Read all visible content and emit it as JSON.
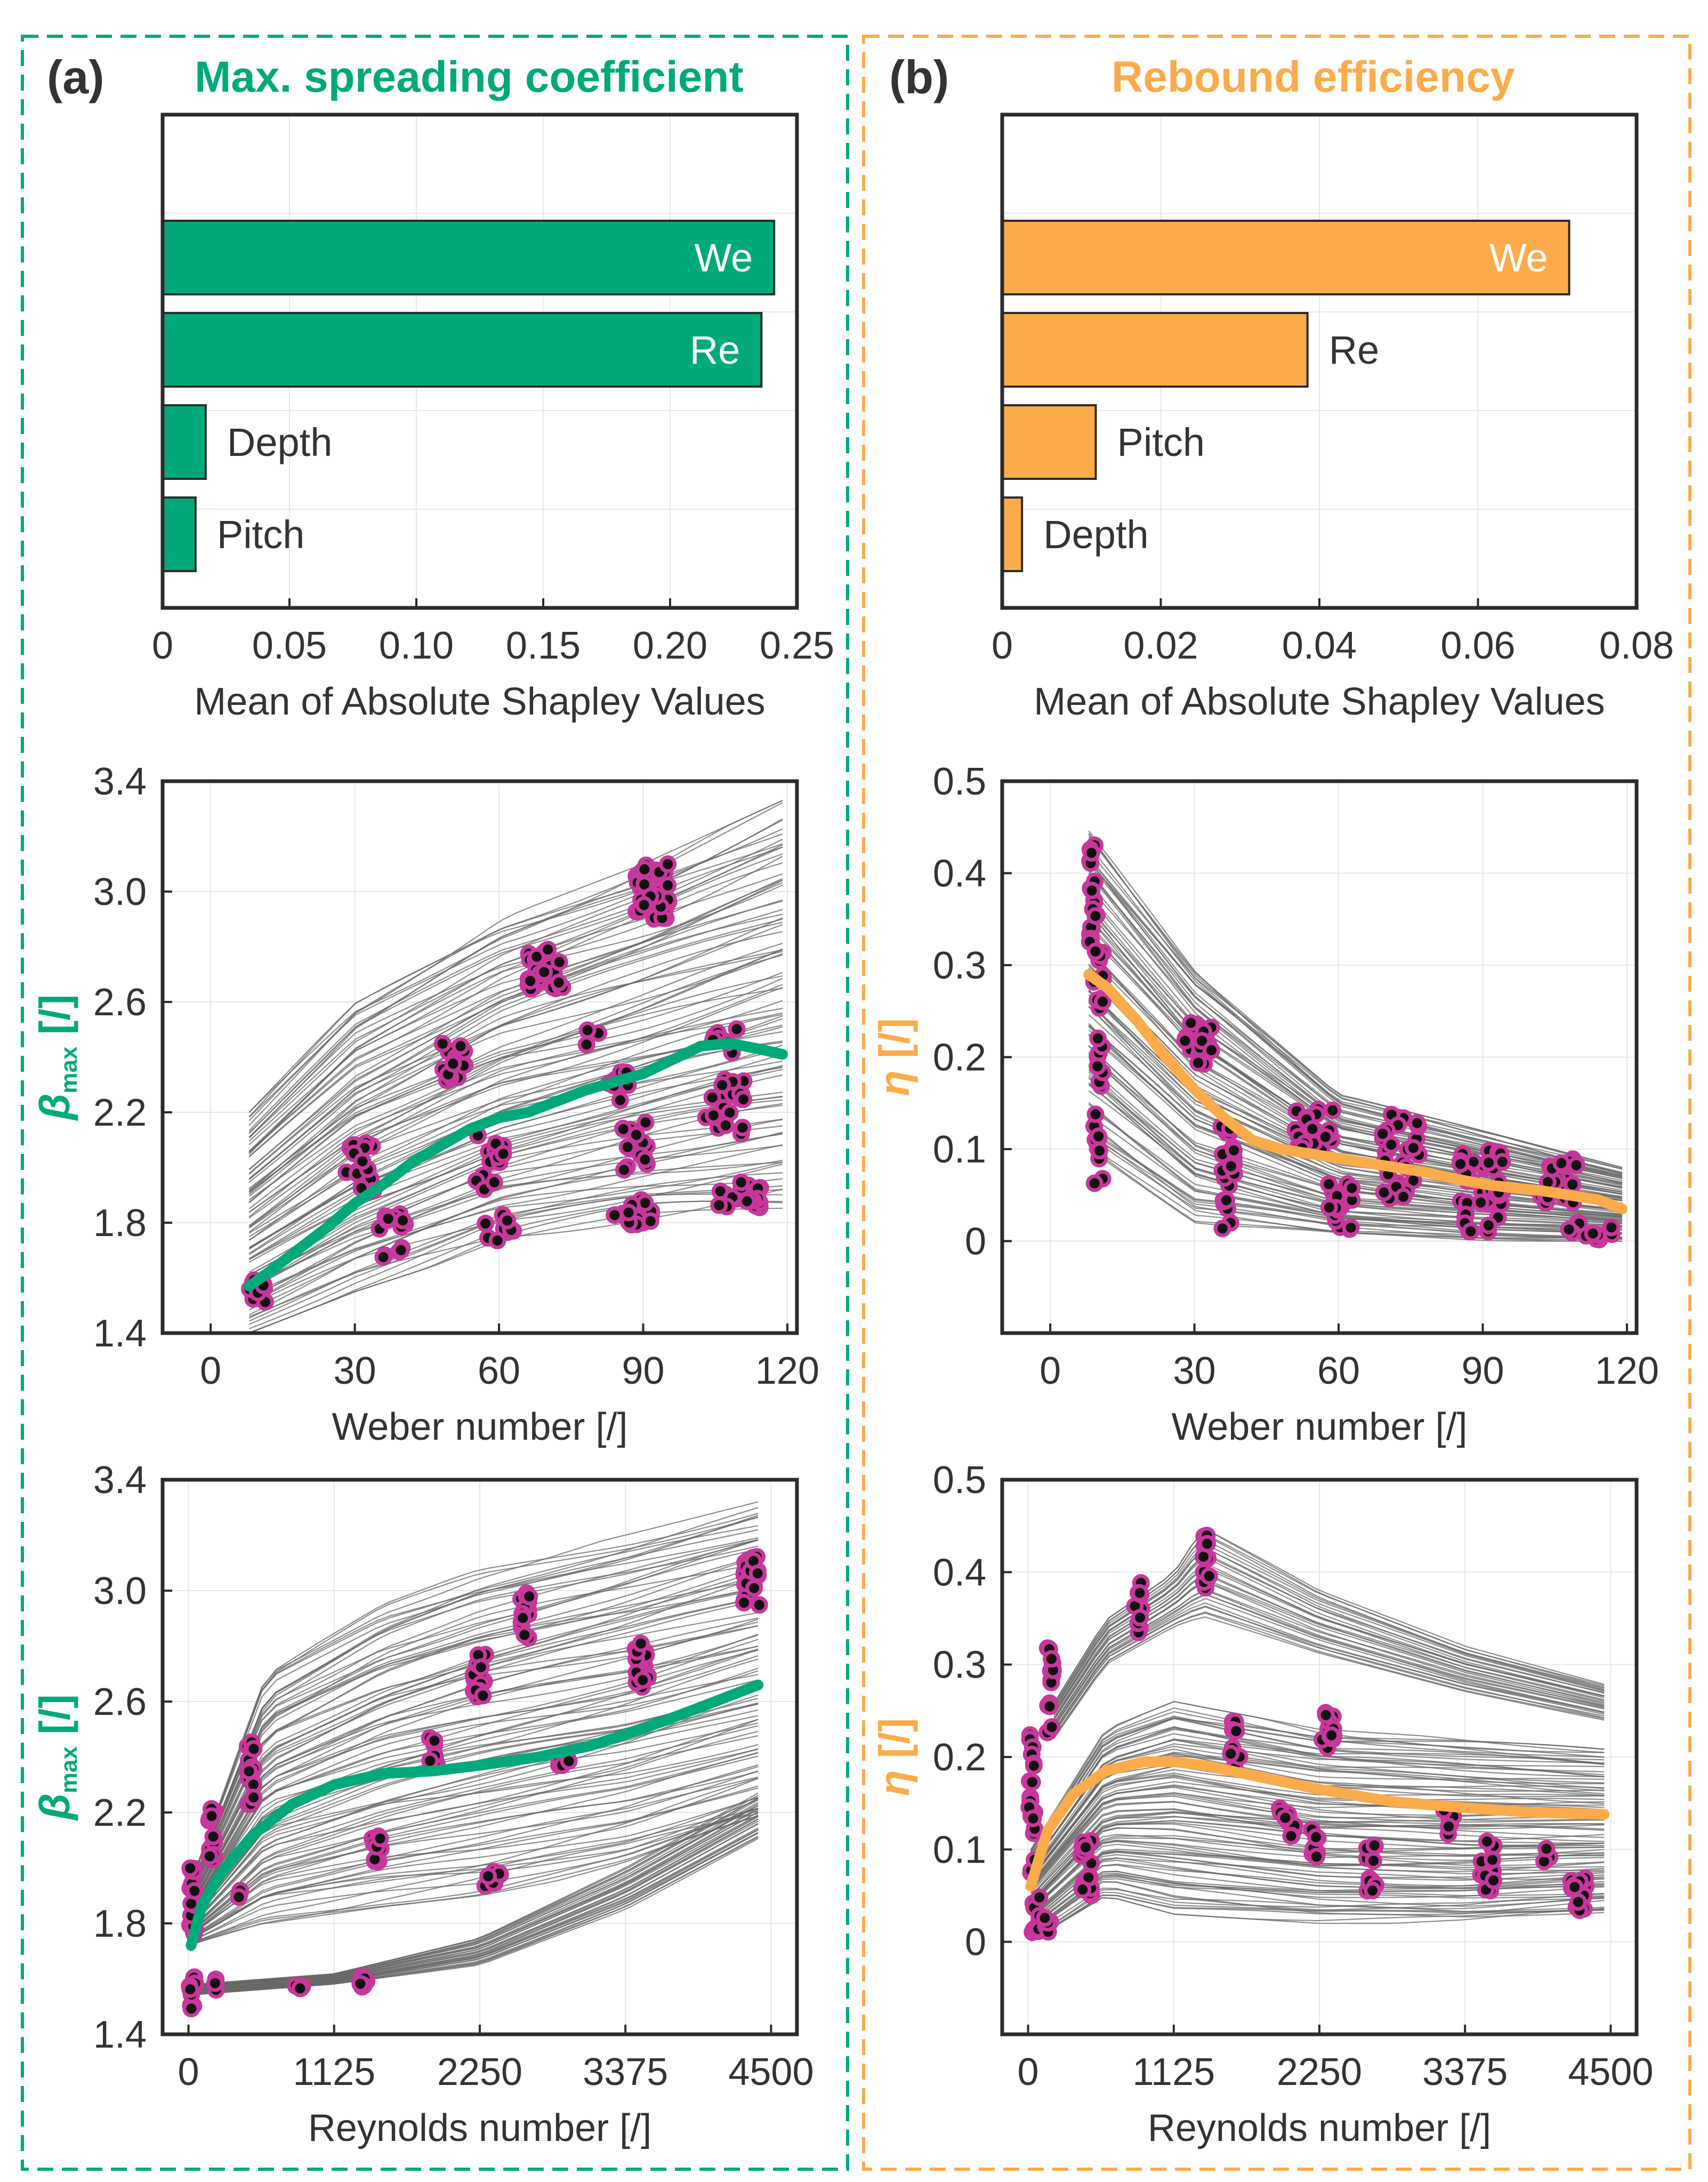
{
  "colors": {
    "green": "#00a97a",
    "orange": "#fbab4a",
    "pink": "#c8379b",
    "gray": "#666666",
    "frame": "#2b2b2b",
    "grid": "#e6e6e6"
  },
  "panels": [
    {
      "letter": "(a)",
      "title": "Max. spreading coefficient",
      "color_key": "green"
    },
    {
      "letter": "(b)",
      "title": "Rebound efficiency",
      "color_key": "orange"
    }
  ],
  "chart_data": [
    {
      "id": "bar_a",
      "type": "bar",
      "orientation": "horizontal",
      "title": "Max. spreading coefficient",
      "xlabel": "Mean of Absolute Shapley Values",
      "categories": [
        "We",
        "Re",
        "Depth",
        "Pitch"
      ],
      "values": [
        0.241,
        0.236,
        0.017,
        0.013
      ],
      "xlim": [
        0,
        0.25
      ],
      "xticks": [
        0,
        0.05,
        0.1,
        0.15,
        0.2,
        0.25
      ],
      "xtick_labels": [
        "0",
        "0.05",
        "0.10",
        "0.15",
        "0.20",
        "0.25"
      ],
      "label_inside": [
        true,
        true,
        false,
        false
      ],
      "color_key": "green"
    },
    {
      "id": "bar_b",
      "type": "bar",
      "orientation": "horizontal",
      "title": "Rebound efficiency",
      "xlabel": "Mean of Absolute Shapley Values",
      "categories": [
        "We",
        "Re",
        "Pitch",
        "Depth"
      ],
      "values": [
        0.0715,
        0.0385,
        0.0118,
        0.0025
      ],
      "xlim": [
        0,
        0.08
      ],
      "xticks": [
        0,
        0.02,
        0.04,
        0.06,
        0.08
      ],
      "xtick_labels": [
        "0",
        "0.02",
        "0.04",
        "0.06",
        "0.08"
      ],
      "label_inside": [
        true,
        false,
        false,
        false
      ],
      "color_key": "orange"
    },
    {
      "id": "we_beta",
      "type": "scatter",
      "xlabel": "Weber number [/]",
      "ylabel_symbol": "β",
      "ylabel_sub": "max",
      "ylabel_unit": "[/]",
      "xlim": [
        -10,
        122
      ],
      "ylim": [
        1.4,
        3.4
      ],
      "xticks": [
        0,
        30,
        60,
        90,
        120
      ],
      "xtick_labels": [
        "0",
        "30",
        "60",
        "90",
        "120"
      ],
      "yticks": [
        1.4,
        1.8,
        2.2,
        2.6,
        3.0,
        3.4
      ],
      "ytick_labels": [
        "1.4",
        "1.8",
        "2.2",
        "2.6",
        "3.0",
        "3.4"
      ],
      "color_key": "green",
      "mean_curve": {
        "x": [
          8,
          12,
          18,
          24,
          30,
          36,
          42,
          48,
          54,
          60,
          66,
          72,
          78,
          84,
          90,
          96,
          102,
          108,
          114,
          119
        ],
        "y": [
          1.57,
          1.62,
          1.7,
          1.78,
          1.87,
          1.94,
          2.02,
          2.08,
          2.14,
          2.18,
          2.2,
          2.24,
          2.28,
          2.31,
          2.34,
          2.39,
          2.44,
          2.45,
          2.43,
          2.41
        ]
      },
      "band": {
        "x": [
          8,
          30,
          60,
          90,
          119
        ],
        "lo": [
          1.4,
          1.55,
          1.72,
          1.8,
          1.85
        ],
        "hi": [
          2.2,
          2.6,
          2.9,
          3.1,
          3.33
        ]
      },
      "clusters": [
        {
          "x": 10,
          "y": 1.56,
          "dx": 2.5,
          "dy": 0.05,
          "n": 10
        },
        {
          "x": 31,
          "y": 2.0,
          "dx": 3,
          "dy": 0.09,
          "n": 18
        },
        {
          "x": 38,
          "y": 1.75,
          "dx": 3,
          "dy": 0.09,
          "n": 14
        },
        {
          "x": 51,
          "y": 2.38,
          "dx": 3,
          "dy": 0.07,
          "n": 18
        },
        {
          "x": 58,
          "y": 2.02,
          "dx": 3,
          "dy": 0.1,
          "n": 14
        },
        {
          "x": 60,
          "y": 1.78,
          "dx": 3,
          "dy": 0.05,
          "n": 10
        },
        {
          "x": 70,
          "y": 2.72,
          "dx": 4,
          "dy": 0.08,
          "n": 28
        },
        {
          "x": 79,
          "y": 2.47,
          "dx": 2,
          "dy": 0.03,
          "n": 3
        },
        {
          "x": 85,
          "y": 2.3,
          "dx": 3,
          "dy": 0.06,
          "n": 10
        },
        {
          "x": 88,
          "y": 2.08,
          "dx": 3,
          "dy": 0.09,
          "n": 14
        },
        {
          "x": 88,
          "y": 1.84,
          "dx": 4,
          "dy": 0.05,
          "n": 18
        },
        {
          "x": 92,
          "y": 3.0,
          "dx": 4,
          "dy": 0.1,
          "n": 40
        },
        {
          "x": 107,
          "y": 2.22,
          "dx": 4,
          "dy": 0.1,
          "n": 24
        },
        {
          "x": 107,
          "y": 2.46,
          "dx": 3,
          "dy": 0.05,
          "n": 8
        },
        {
          "x": 110,
          "y": 1.9,
          "dx": 5,
          "dy": 0.05,
          "n": 20
        }
      ]
    },
    {
      "id": "we_eta",
      "type": "scatter",
      "xlabel": "Weber number [/]",
      "ylabel_symbol": "η",
      "ylabel_sub": "",
      "ylabel_unit": "[/]",
      "xlim": [
        -10,
        122
      ],
      "ylim": [
        -0.1,
        0.5
      ],
      "xticks": [
        0,
        30,
        60,
        90,
        120
      ],
      "xtick_labels": [
        "0",
        "30",
        "60",
        "90",
        "120"
      ],
      "yticks": [
        0,
        0.1,
        0.2,
        0.3,
        0.4,
        0.5
      ],
      "ytick_labels": [
        "0",
        "0.1",
        "0.2",
        "0.3",
        "0.4",
        "0.5"
      ],
      "color_key": "orange",
      "mean_curve": {
        "x": [
          8,
          12,
          18,
          24,
          30,
          36,
          42,
          48,
          54,
          60,
          66,
          72,
          78,
          84,
          90,
          96,
          102,
          108,
          114,
          119
        ],
        "y": [
          0.29,
          0.275,
          0.24,
          0.2,
          0.165,
          0.135,
          0.11,
          0.1,
          0.095,
          0.09,
          0.085,
          0.08,
          0.075,
          0.068,
          0.062,
          0.058,
          0.055,
          0.05,
          0.045,
          0.035
        ]
      },
      "band": {
        "x": [
          8,
          30,
          60,
          90,
          119
        ],
        "lo": [
          0.1,
          0.02,
          0.005,
          0.0,
          0.0
        ],
        "hi": [
          0.45,
          0.3,
          0.16,
          0.12,
          0.08
        ]
      },
      "clusters": [
        {
          "x": 9,
          "y": 0.38,
          "dx": 0.8,
          "dy": 0.06,
          "n": 18
        },
        {
          "x": 10,
          "y": 0.24,
          "dx": 1.0,
          "dy": 0.08,
          "n": 22
        },
        {
          "x": 10,
          "y": 0.1,
          "dx": 1.0,
          "dy": 0.04,
          "n": 10
        },
        {
          "x": 31,
          "y": 0.215,
          "dx": 3,
          "dy": 0.025,
          "n": 20
        },
        {
          "x": 37,
          "y": 0.09,
          "dx": 1.5,
          "dy": 0.05,
          "n": 18
        },
        {
          "x": 37,
          "y": 0.03,
          "dx": 1.5,
          "dy": 0.02,
          "n": 6
        },
        {
          "x": 55,
          "y": 0.12,
          "dx": 4,
          "dy": 0.025,
          "n": 22
        },
        {
          "x": 60,
          "y": 0.04,
          "dx": 3,
          "dy": 0.03,
          "n": 16
        },
        {
          "x": 73,
          "y": 0.11,
          "dx": 4,
          "dy": 0.03,
          "n": 22
        },
        {
          "x": 72,
          "y": 0.06,
          "dx": 4,
          "dy": 0.015,
          "n": 8
        },
        {
          "x": 90,
          "y": 0.07,
          "dx": 5,
          "dy": 0.03,
          "n": 32
        },
        {
          "x": 90,
          "y": 0.02,
          "dx": 4,
          "dy": 0.01,
          "n": 8
        },
        {
          "x": 106,
          "y": 0.065,
          "dx": 4,
          "dy": 0.025,
          "n": 20
        },
        {
          "x": 112,
          "y": 0.01,
          "dx": 5,
          "dy": 0.01,
          "n": 14
        }
      ]
    },
    {
      "id": "re_beta",
      "type": "scatter",
      "xlabel": "Reynolds number [/]",
      "ylabel_symbol": "β",
      "ylabel_sub": "max",
      "ylabel_unit": "[/]",
      "xlim": [
        -200,
        4700
      ],
      "ylim": [
        1.4,
        3.4
      ],
      "xticks": [
        0,
        1125,
        2250,
        3375,
        4500
      ],
      "xtick_labels": [
        "0",
        "1125",
        "2250",
        "3375",
        "4500"
      ],
      "yticks": [
        1.4,
        1.8,
        2.2,
        2.6,
        3.0,
        3.4
      ],
      "ytick_labels": [
        "1.4",
        "1.8",
        "2.2",
        "2.6",
        "3.0",
        "3.4"
      ],
      "color_key": "green",
      "mean_curve": {
        "x": [
          20,
          100,
          250,
          500,
          800,
          1125,
          1500,
          1900,
          2250,
          2700,
          3100,
          3500,
          3900,
          4400
        ],
        "y": [
          1.72,
          1.86,
          1.98,
          2.12,
          2.23,
          2.3,
          2.34,
          2.35,
          2.37,
          2.4,
          2.44,
          2.5,
          2.57,
          2.66
        ]
      },
      "band": {
        "x": [
          20,
          600,
          1500,
          2250,
          3375,
          4400
        ],
        "lo": [
          1.72,
          1.8,
          1.86,
          1.9,
          2.0,
          2.15
        ],
        "hi": [
          1.95,
          2.7,
          2.95,
          3.08,
          3.2,
          3.32
        ]
      },
      "low_band": {
        "x": [
          20,
          1125,
          2250,
          3375,
          4400
        ],
        "lo": [
          1.54,
          1.58,
          1.65,
          1.85,
          2.1
        ],
        "hi": [
          1.58,
          1.62,
          1.75,
          2.0,
          2.27
        ]
      },
      "clusters": [
        {
          "x": 30,
          "y": 1.88,
          "dx": 25,
          "dy": 0.12,
          "n": 18
        },
        {
          "x": 30,
          "y": 1.55,
          "dx": 25,
          "dy": 0.06,
          "n": 10
        },
        {
          "x": 180,
          "y": 2.12,
          "dx": 25,
          "dy": 0.1,
          "n": 14
        },
        {
          "x": 220,
          "y": 1.58,
          "dx": 20,
          "dy": 0.02,
          "n": 3
        },
        {
          "x": 480,
          "y": 2.35,
          "dx": 25,
          "dy": 0.12,
          "n": 18
        },
        {
          "x": 400,
          "y": 1.91,
          "dx": 25,
          "dy": 0.02,
          "n": 3
        },
        {
          "x": 850,
          "y": 1.57,
          "dx": 30,
          "dy": 0.01,
          "n": 4
        },
        {
          "x": 1350,
          "y": 1.59,
          "dx": 30,
          "dy": 0.02,
          "n": 6
        },
        {
          "x": 1450,
          "y": 2.07,
          "dx": 40,
          "dy": 0.05,
          "n": 12
        },
        {
          "x": 1900,
          "y": 2.42,
          "dx": 40,
          "dy": 0.05,
          "n": 8
        },
        {
          "x": 2250,
          "y": 2.68,
          "dx": 50,
          "dy": 0.1,
          "n": 18
        },
        {
          "x": 2350,
          "y": 1.96,
          "dx": 60,
          "dy": 0.03,
          "n": 10
        },
        {
          "x": 2600,
          "y": 2.92,
          "dx": 40,
          "dy": 0.1,
          "n": 18
        },
        {
          "x": 2900,
          "y": 2.37,
          "dx": 40,
          "dy": 0.03,
          "n": 8
        },
        {
          "x": 3500,
          "y": 2.73,
          "dx": 50,
          "dy": 0.08,
          "n": 22
        },
        {
          "x": 4350,
          "y": 3.03,
          "dx": 60,
          "dy": 0.1,
          "n": 28
        }
      ]
    },
    {
      "id": "re_eta",
      "type": "scatter",
      "xlabel": "Reynolds number [/]",
      "ylabel_symbol": "η",
      "ylabel_sub": "",
      "ylabel_unit": "[/]",
      "xlim": [
        -200,
        4700
      ],
      "ylim": [
        -0.1,
        0.5
      ],
      "xticks": [
        0,
        1125,
        2250,
        3375,
        4500
      ],
      "xtick_labels": [
        "0",
        "1125",
        "2250",
        "3375",
        "4500"
      ],
      "yticks": [
        0,
        0.1,
        0.2,
        0.3,
        0.4,
        0.5
      ],
      "ytick_labels": [
        "0",
        "0.1",
        "0.2",
        "0.3",
        "0.4",
        "0.5"
      ],
      "color_key": "orange",
      "mean_curve": {
        "x": [
          20,
          150,
          350,
          600,
          900,
          1125,
          1400,
          1800,
          2250,
          2800,
          3375,
          3900,
          4450
        ],
        "y": [
          0.06,
          0.12,
          0.16,
          0.185,
          0.195,
          0.195,
          0.19,
          0.178,
          0.165,
          0.152,
          0.145,
          0.14,
          0.138
        ]
      },
      "band": {
        "x": [
          20,
          600,
          1125,
          2250,
          3375,
          4450
        ],
        "lo": [
          0.0,
          0.05,
          0.03,
          0.02,
          0.02,
          0.03
        ],
        "hi": [
          0.1,
          0.23,
          0.26,
          0.23,
          0.22,
          0.21
        ]
      },
      "high_band": {
        "x": [
          200,
          600,
          1125,
          1350,
          2250,
          3375,
          4450
        ],
        "lo": [
          0.22,
          0.3,
          0.34,
          0.35,
          0.31,
          0.27,
          0.24
        ],
        "hi": [
          0.26,
          0.35,
          0.4,
          0.45,
          0.38,
          0.32,
          0.28
        ]
      },
      "clusters": [
        {
          "x": 30,
          "y": 0.15,
          "dx": 25,
          "dy": 0.08,
          "n": 22
        },
        {
          "x": 60,
          "y": 0.03,
          "dx": 30,
          "dy": 0.02,
          "n": 12
        },
        {
          "x": 170,
          "y": 0.27,
          "dx": 25,
          "dy": 0.05,
          "n": 14
        },
        {
          "x": 150,
          "y": 0.02,
          "dx": 25,
          "dy": 0.01,
          "n": 6
        },
        {
          "x": 450,
          "y": 0.08,
          "dx": 40,
          "dy": 0.03,
          "n": 18
        },
        {
          "x": 850,
          "y": 0.36,
          "dx": 30,
          "dy": 0.03,
          "n": 10
        },
        {
          "x": 1380,
          "y": 0.4,
          "dx": 30,
          "dy": 0.04,
          "n": 14
        },
        {
          "x": 1600,
          "y": 0.21,
          "dx": 40,
          "dy": 0.03,
          "n": 10
        },
        {
          "x": 2300,
          "y": 0.23,
          "dx": 60,
          "dy": 0.02,
          "n": 16
        },
        {
          "x": 2000,
          "y": 0.13,
          "dx": 60,
          "dy": 0.02,
          "n": 10
        },
        {
          "x": 2200,
          "y": 0.11,
          "dx": 40,
          "dy": 0.02,
          "n": 8
        },
        {
          "x": 2650,
          "y": 0.08,
          "dx": 40,
          "dy": 0.03,
          "n": 12
        },
        {
          "x": 3250,
          "y": 0.13,
          "dx": 40,
          "dy": 0.02,
          "n": 6
        },
        {
          "x": 3550,
          "y": 0.08,
          "dx": 60,
          "dy": 0.03,
          "n": 14
        },
        {
          "x": 4000,
          "y": 0.09,
          "dx": 30,
          "dy": 0.02,
          "n": 4
        },
        {
          "x": 4250,
          "y": 0.05,
          "dx": 60,
          "dy": 0.02,
          "n": 14
        }
      ]
    }
  ]
}
